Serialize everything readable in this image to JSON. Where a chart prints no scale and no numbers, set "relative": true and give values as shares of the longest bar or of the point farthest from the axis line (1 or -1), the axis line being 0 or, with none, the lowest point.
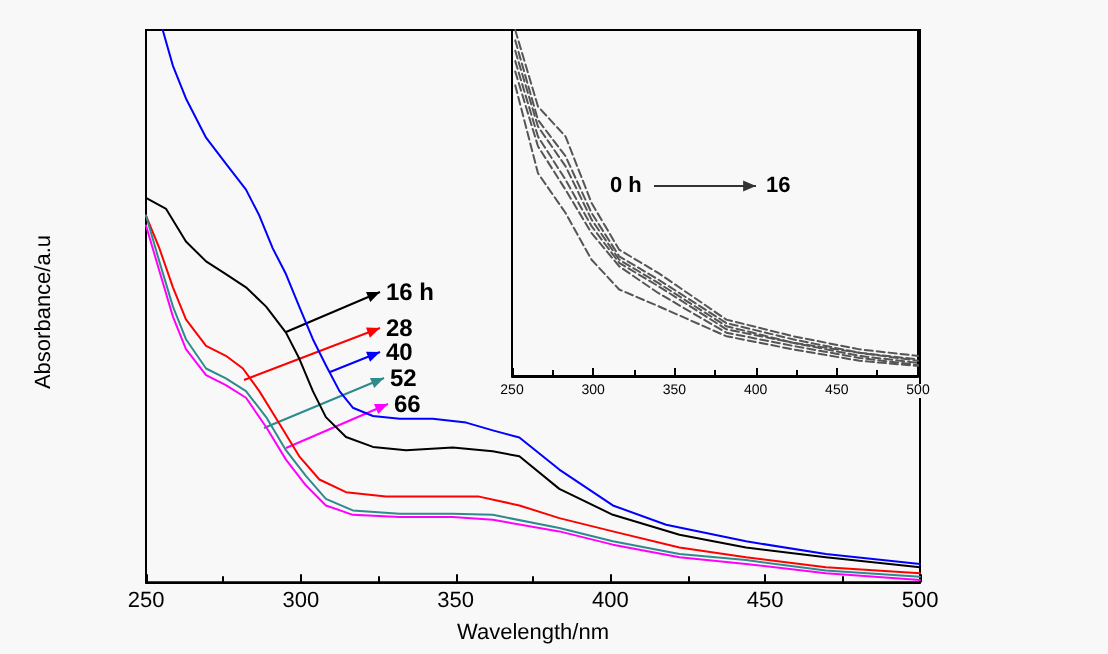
{
  "chart_data": [
    {
      "type": "line",
      "xlabel": "Wavelength/nm",
      "ylabel": "Absorbance/a.u",
      "relative": true,
      "xlim": [
        250,
        500
      ],
      "xticks": [
        250,
        300,
        350,
        400,
        450,
        500
      ],
      "grid": false,
      "legend": "left",
      "marker": "none",
      "line_style": "solid",
      "series": [
        {
          "name": "16 h",
          "color": "#000000",
          "x": [
            250,
            256.5,
            262.9,
            269.4,
            275.8,
            282.3,
            288.8,
            295.2,
            299.5,
            303.9,
            308.1,
            314.6,
            323.3,
            334,
            349.1,
            362,
            370.6,
            383.5,
            400.8,
            422.3,
            443.8,
            469.6,
            500
          ],
          "values": [
            0.696,
            0.676,
            0.617,
            0.581,
            0.558,
            0.534,
            0.499,
            0.452,
            0.405,
            0.346,
            0.299,
            0.263,
            0.245,
            0.239,
            0.244,
            0.237,
            0.228,
            0.169,
            0.122,
            0.086,
            0.063,
            0.045,
            0.027
          ]
        },
        {
          "name": "28",
          "color": "#ff0000",
          "x": [
            250,
            254.3,
            258.7,
            262.9,
            269.4,
            275.8,
            281.3,
            286.6,
            293.1,
            299.5,
            306,
            314.6,
            327.5,
            342.6,
            357.6,
            370.6,
            383.5,
            400.8,
            422.3,
            443.8,
            469.6,
            500
          ],
          "values": [
            0.664,
            0.605,
            0.534,
            0.476,
            0.428,
            0.41,
            0.387,
            0.346,
            0.287,
            0.228,
            0.186,
            0.163,
            0.155,
            0.155,
            0.155,
            0.139,
            0.116,
            0.092,
            0.063,
            0.045,
            0.027,
            0.016
          ]
        },
        {
          "name": "40",
          "color": "#0000ff",
          "x": [
            255.4,
            258.7,
            262.9,
            269.4,
            275.8,
            282.3,
            286.6,
            290.9,
            295.2,
            299.5,
            303.9,
            308.1,
            312.5,
            316.8,
            323.3,
            331.9,
            342.6,
            353.4,
            362,
            370.6,
            383.5,
            400.8,
            418,
            443.8,
            469.6,
            500
          ],
          "values": [
            1,
            0.935,
            0.876,
            0.805,
            0.758,
            0.711,
            0.664,
            0.605,
            0.558,
            0.499,
            0.44,
            0.393,
            0.346,
            0.316,
            0.301,
            0.296,
            0.296,
            0.289,
            0.275,
            0.262,
            0.204,
            0.139,
            0.104,
            0.074,
            0.051,
            0.033
          ]
        },
        {
          "name": "52",
          "color": "#2e8b8b",
          "x": [
            250,
            254.3,
            258.7,
            262.9,
            269.4,
            275.8,
            282.3,
            288.8,
            295.2,
            301.7,
            308.1,
            316.8,
            331.9,
            349.1,
            362,
            383.5,
            400.8,
            422.3,
            443.8,
            469.6,
            500
          ],
          "values": [
            0.664,
            0.581,
            0.499,
            0.44,
            0.387,
            0.369,
            0.346,
            0.299,
            0.239,
            0.192,
            0.151,
            0.13,
            0.124,
            0.124,
            0.122,
            0.098,
            0.074,
            0.051,
            0.04,
            0.021,
            0.01
          ]
        },
        {
          "name": "66",
          "color": "#ff00ff",
          "x": [
            250,
            254.3,
            258.7,
            262.9,
            269.4,
            275.8,
            282.3,
            288.8,
            295.2,
            301.7,
            308.1,
            316.8,
            331.9,
            349.1,
            362,
            383.5,
            400.8,
            422.3,
            443.8,
            469.6,
            500
          ],
          "values": [
            0.646,
            0.564,
            0.481,
            0.422,
            0.375,
            0.357,
            0.334,
            0.281,
            0.222,
            0.175,
            0.139,
            0.122,
            0.118,
            0.118,
            0.113,
            0.092,
            0.068,
            0.045,
            0.033,
            0.016,
            0.004
          ]
        }
      ]
    },
    {
      "type": "line",
      "relative": true,
      "xlim": [
        250,
        500
      ],
      "xticks": [
        250,
        300,
        350,
        400,
        450,
        500
      ],
      "grid": false,
      "marker": "none",
      "line_style": "dashed",
      "annotations": [
        "0 h",
        "16"
      ],
      "series": [
        {
          "color": "#555555",
          "x": [
            252,
            266,
            283,
            299,
            316,
            340,
            382,
            423,
            464,
            500
          ],
          "values": [
            1,
            0.779,
            0.692,
            0.5,
            0.365,
            0.298,
            0.163,
            0.115,
            0.077,
            0.058
          ]
        },
        {
          "color": "#555555",
          "x": [
            252,
            266,
            283,
            299,
            316,
            340,
            382,
            423,
            464,
            500
          ],
          "values": [
            0.97,
            0.74,
            0.635,
            0.471,
            0.346,
            0.279,
            0.153,
            0.106,
            0.067,
            0.048
          ]
        },
        {
          "color": "#555555",
          "x": [
            252,
            266,
            283,
            299,
            316,
            340,
            382,
            423,
            464,
            500
          ],
          "values": [
            0.94,
            0.721,
            0.606,
            0.452,
            0.336,
            0.269,
            0.144,
            0.096,
            0.067,
            0.044
          ]
        },
        {
          "color": "#555555",
          "x": [
            252,
            266,
            283,
            299,
            316,
            340,
            382,
            423,
            464,
            500
          ],
          "values": [
            0.91,
            0.692,
            0.567,
            0.433,
            0.327,
            0.26,
            0.135,
            0.096,
            0.058,
            0.038
          ]
        },
        {
          "color": "#555555",
          "x": [
            252,
            266,
            283,
            299,
            316,
            340,
            382,
            423,
            464,
            500
          ],
          "values": [
            0.88,
            0.664,
            0.538,
            0.413,
            0.317,
            0.24,
            0.125,
            0.087,
            0.052,
            0.032
          ]
        },
        {
          "color": "#555555",
          "x": [
            252,
            266,
            283,
            299,
            316,
            340,
            382,
            423,
            464,
            500
          ],
          "values": [
            0.84,
            0.586,
            0.471,
            0.336,
            0.25,
            0.202,
            0.115,
            0.077,
            0.044,
            0.029
          ]
        }
      ]
    }
  ]
}
